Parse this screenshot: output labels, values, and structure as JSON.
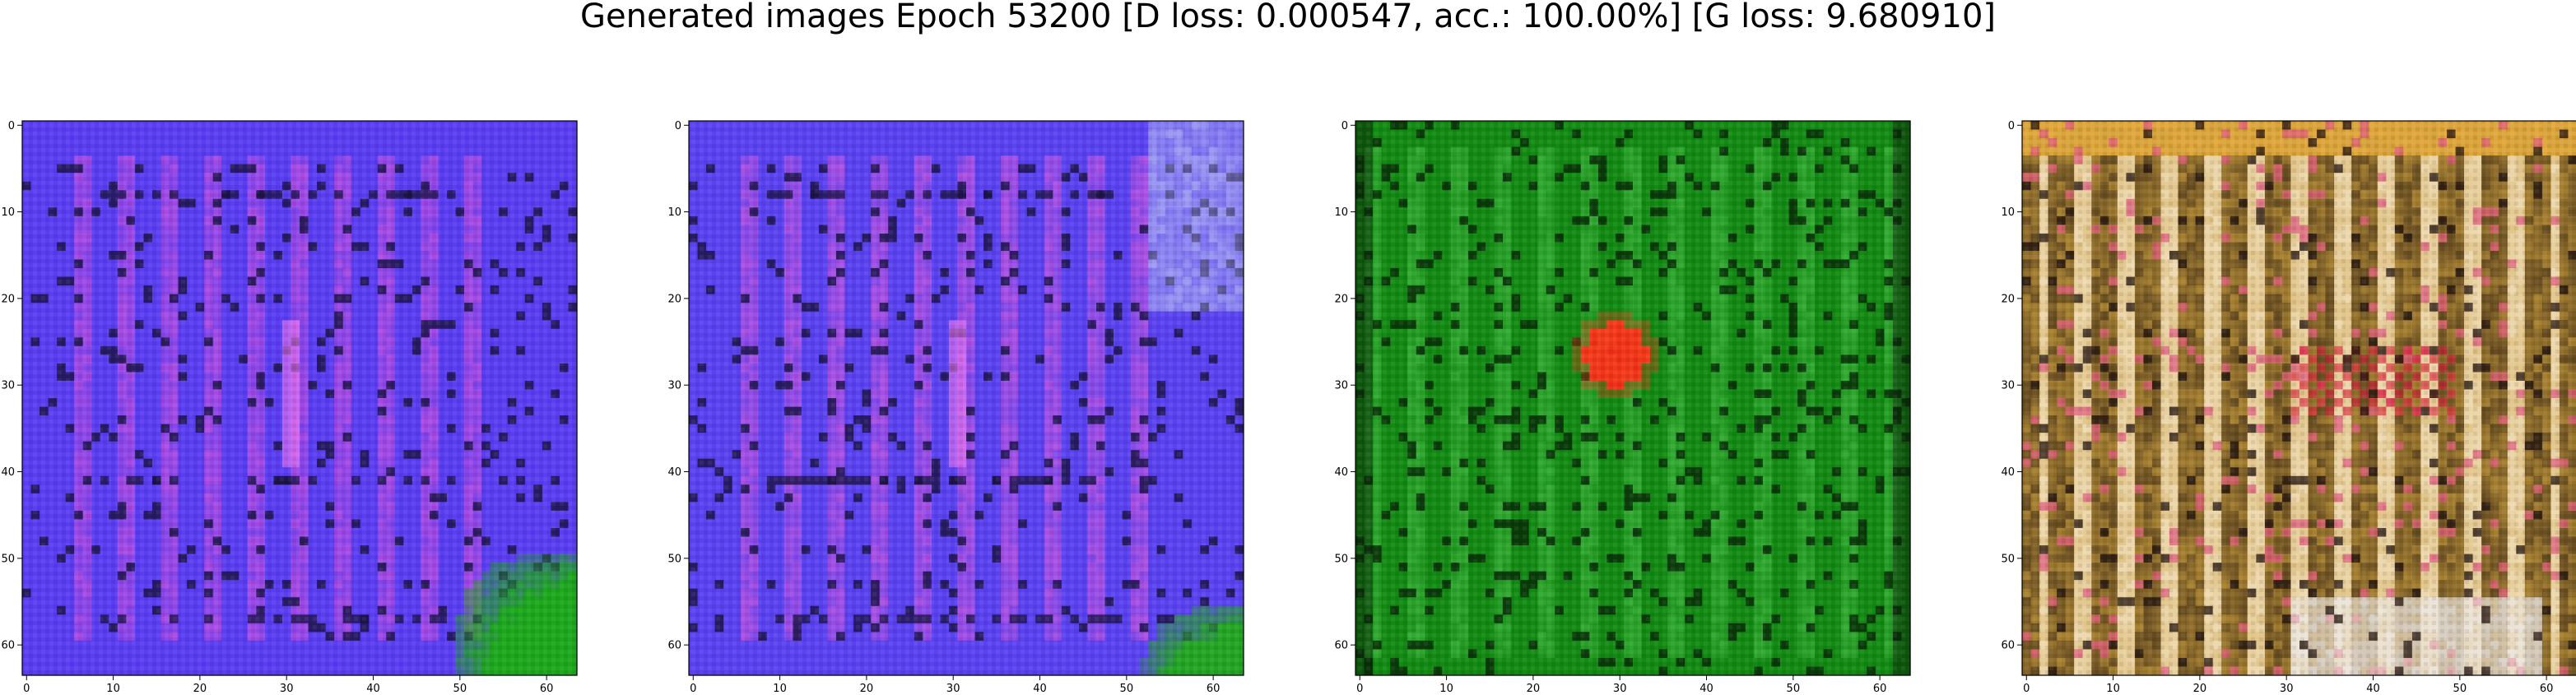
{
  "title": "Generated images Epoch 53200 [D loss: 0.000547, acc.: 100.00%] [G loss: 9.680910]",
  "panel_count": 4,
  "axis_ticks": {
    "x": [
      "0",
      "10",
      "20",
      "30",
      "40",
      "50",
      "60"
    ],
    "y": [
      "0",
      "10",
      "20",
      "30",
      "40",
      "50",
      "60"
    ]
  },
  "image_resolution": 64,
  "panels": [
    {
      "name": "generated-image-1",
      "description_colors": {
        "base": "#5a3ef2",
        "stripe": "#c24fe0",
        "dark": "#1a1240",
        "blob": "#1ea81e"
      },
      "dominant_hue": "blue-violet"
    },
    {
      "name": "generated-image-2",
      "description_colors": {
        "base": "#5a42f0",
        "stripe": "#c455e0",
        "dark": "#1a1240",
        "blob": "#24a524",
        "light": "#b9c0f5"
      },
      "dominant_hue": "blue-violet"
    },
    {
      "name": "generated-image-3",
      "description_colors": {
        "base": "#138a13",
        "stripe": "#3fb83f",
        "dark": "#062006",
        "spot": "#f03018"
      },
      "dominant_hue": "green"
    },
    {
      "name": "generated-image-4",
      "description_colors": {
        "base": "#c59a3a",
        "stripe": "#f4e2c0",
        "dark": "#2a1a10",
        "accent": "#e24a8a",
        "light": "#ece6e0"
      },
      "dominant_hue": "golden-brown"
    }
  ]
}
